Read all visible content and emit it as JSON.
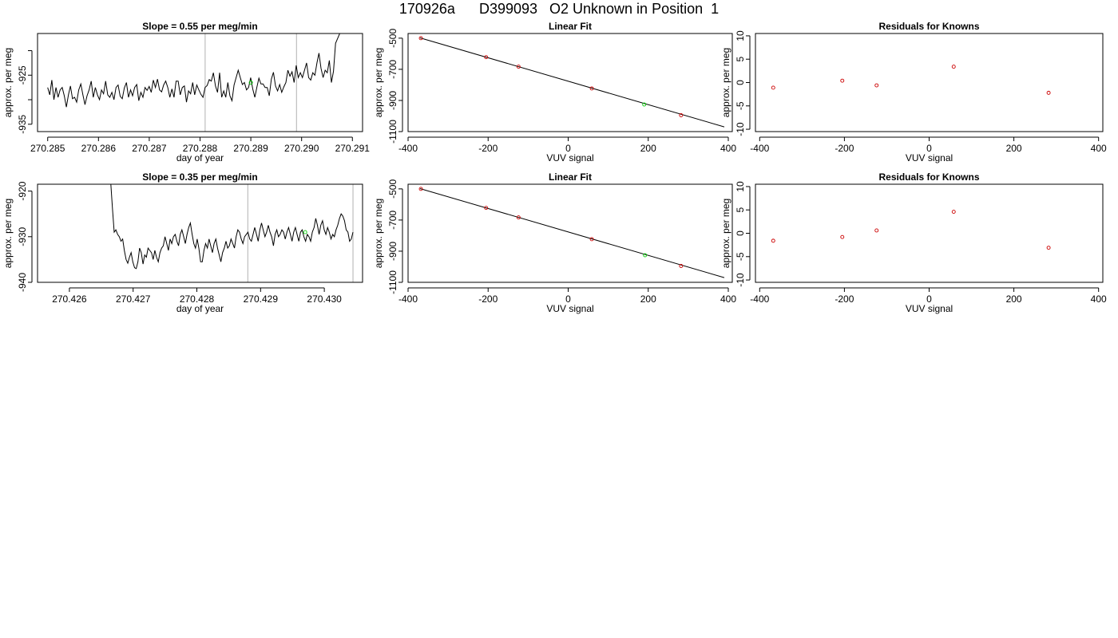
{
  "page": {
    "title": "170926a      D399093   O2 Unknown in Position  1"
  },
  "colors": {
    "line": "#000000",
    "known": "#cc0000",
    "unknown": "#00cc00",
    "vline": "#bebebe",
    "axis": "#000000"
  },
  "chart_data": [
    {
      "type": "line",
      "title": "Slope =  0.55  per meg/min",
      "xlabel": "day of year",
      "ylabel": "approx. per meg",
      "xlim": [
        270.2848,
        270.2912
      ],
      "ylim": [
        -936.5,
        -916.5
      ],
      "xticks": [
        270.285,
        270.286,
        270.287,
        270.288,
        270.289,
        270.29,
        270.291
      ],
      "xtick_labels": [
        "270.285",
        "270.286",
        "270.287",
        "270.288",
        "270.289",
        "270.290",
        "270.291"
      ],
      "yticks": [
        -935,
        -930,
        -925,
        -920
      ],
      "ytick_labels": [
        "-935",
        "",
        "-925",
        ""
      ],
      "vlines": [
        270.2881,
        270.2899
      ],
      "series": [
        {
          "style": "line",
          "x_start": 270.285,
          "x_end": 270.29075,
          "values": [
            -927.5,
            -929,
            -926,
            -930,
            -927.5,
            -929.5,
            -928,
            -927.5,
            -929.2,
            -931.5,
            -929,
            -927.2,
            -929.8,
            -929.5,
            -930.5,
            -928,
            -926.8,
            -929,
            -931,
            -929.2,
            -928,
            -926.2,
            -929.5,
            -927.5,
            -929,
            -930,
            -928,
            -928.8,
            -926.2,
            -929,
            -929.5,
            -928.5,
            -930,
            -927.5,
            -927,
            -929.3,
            -929.8,
            -927.6,
            -926.5,
            -929.5,
            -928,
            -929.2,
            -927.5,
            -926.9,
            -930.2,
            -928.5,
            -929.5,
            -927.5,
            -928.1,
            -927.3,
            -928.5,
            -926,
            -927.5,
            -925.8,
            -928,
            -928.4,
            -927,
            -926.2,
            -927.5,
            -929.5,
            -927.8,
            -929.5,
            -926.2,
            -926.2,
            -929,
            -927.5,
            -927.2,
            -930.5,
            -928.2,
            -928.8,
            -926.5,
            -929,
            -927,
            -928,
            -928.9,
            -929.5,
            -927.5,
            -927.1,
            -925.9,
            -926.2,
            -924.5,
            -927.2,
            -928.5,
            -924.5,
            -929.5,
            -928.2,
            -929.5,
            -926.5,
            -929.2,
            -930.2,
            -927,
            -925.5,
            -924,
            -925.5,
            -926.9,
            -926.5,
            -928,
            -927.5,
            -925.5,
            -927.8,
            -929.5,
            -927.5,
            -925.6,
            -926.8,
            -926.8,
            -927.5,
            -927.5,
            -929.2,
            -925.8,
            -924.4,
            -927.2,
            -928.2,
            -926.9,
            -928.5,
            -927.4,
            -926.5,
            -924,
            -925.2,
            -924.3,
            -926.5,
            -923,
            -925.5,
            -924.5,
            -925.5,
            -924,
            -922.5,
            -925.5,
            -926,
            -924.5,
            -925,
            -922.5,
            -920.5,
            -923.6,
            -925.5,
            -924,
            -924.5,
            -922,
            -926.5,
            -924.2,
            -918.5,
            -917.5,
            -916.5
          ]
        },
        {
          "style": "point",
          "x": [
            270.289
          ],
          "y": [
            -926.5
          ],
          "color": "unknown"
        }
      ]
    },
    {
      "type": "scatter",
      "title": "Linear Fit",
      "xlabel": "VUV signal",
      "ylabel": "approx. per meg",
      "xlim": [
        -400,
        410
      ],
      "ylim": [
        -1100,
        -470
      ],
      "xticks": [
        -400,
        -200,
        0,
        200,
        400
      ],
      "xtick_labels": [
        "-400",
        "-200",
        "0",
        "200",
        "400"
      ],
      "yticks": [
        -1100,
        -900,
        -700,
        -500
      ],
      "ytick_labels": [
        "-1100",
        "-900",
        "-700",
        "-500"
      ],
      "fit_line": {
        "x": [
          -370,
          390
        ],
        "y": [
          -498,
          -1070
        ]
      },
      "series": [
        {
          "style": "point",
          "x": [
            -368,
            -205,
            -124,
            59,
            282
          ],
          "y": [
            -500,
            -622,
            -683,
            -823,
            -995
          ],
          "color": "known"
        },
        {
          "style": "point",
          "x": [
            190
          ],
          "y": [
            -926
          ],
          "color": "unknown"
        }
      ]
    },
    {
      "type": "scatter",
      "title": "Residuals for Knowns",
      "xlabel": "VUV signal",
      "ylabel": "approx. per meg",
      "xlim": [
        -410,
        410
      ],
      "ylim": [
        -10.5,
        10.5
      ],
      "xticks": [
        -400,
        -200,
        0,
        200,
        400
      ],
      "xtick_labels": [
        "-400",
        "-200",
        "0",
        "200",
        "400"
      ],
      "yticks": [
        -10,
        -5,
        0,
        5,
        10
      ],
      "ytick_labels": [
        "-10",
        "-5",
        "0",
        "5",
        "10"
      ],
      "series": [
        {
          "style": "point",
          "x": [
            -368,
            -205,
            -124,
            58,
            282
          ],
          "y": [
            -1.1,
            0.4,
            -0.6,
            3.4,
            -2.2
          ],
          "color": "known"
        }
      ]
    },
    {
      "type": "line",
      "title": "Slope =  0.35  per meg/min",
      "xlabel": "day of year",
      "ylabel": "approx. per meg",
      "xlim": [
        270.4255,
        270.4306
      ],
      "ylim": [
        -940,
        -918.5
      ],
      "xticks": [
        270.426,
        270.427,
        270.428,
        270.429,
        270.43
      ],
      "xtick_labels": [
        "270.426",
        "270.427",
        "270.428",
        "270.429",
        "270.430"
      ],
      "yticks": [
        -940,
        -930,
        -920
      ],
      "ytick_labels": [
        "-940",
        "-930",
        "-920"
      ],
      "vlines": [
        270.4288,
        270.43045
      ],
      "series": [
        {
          "style": "line",
          "x_start": 270.42665,
          "x_end": 270.43045,
          "values": [
            -918.5,
            -924,
            -929,
            -928.5,
            -929.5,
            -930,
            -931,
            -930.5,
            -933,
            -935,
            -935.8,
            -934.5,
            -933.5,
            -935.5,
            -936.8,
            -937,
            -935.5,
            -932.5,
            -933.5,
            -936,
            -934,
            -934.5,
            -932.5,
            -933,
            -933.5,
            -935,
            -933,
            -934.5,
            -935.5,
            -933.5,
            -932.5,
            -932,
            -930,
            -931.5,
            -933,
            -930.5,
            -931.5,
            -930,
            -929.5,
            -931,
            -932,
            -929.5,
            -928.5,
            -930,
            -931.5,
            -929.5,
            -928,
            -927,
            -929.5,
            -931.5,
            -932.5,
            -930.5,
            -932.5,
            -935.5,
            -935.5,
            -933,
            -931.5,
            -932.5,
            -930.5,
            -932,
            -933.5,
            -931.5,
            -930.5,
            -932.5,
            -934,
            -935.5,
            -933.5,
            -932.5,
            -931,
            -932.5,
            -932,
            -930.5,
            -931.5,
            -932.5,
            -930,
            -928.5,
            -929,
            -930.5,
            -931.5,
            -930,
            -929.5,
            -929,
            -930.5,
            -931,
            -929.5,
            -928,
            -929.5,
            -931,
            -928.5,
            -927,
            -928.5,
            -930,
            -929,
            -927.5,
            -929,
            -930,
            -932,
            -929.5,
            -928.5,
            -930,
            -929.5,
            -928.5,
            -929,
            -930.5,
            -929,
            -928,
            -929.5,
            -931,
            -929,
            -928,
            -929.5,
            -931,
            -929,
            -928.5,
            -930,
            -931,
            -929.5,
            -930,
            -931,
            -929,
            -928,
            -926,
            -927.5,
            -929.5,
            -927.5,
            -926.5,
            -928.5,
            -929.5,
            -928,
            -929,
            -930.5,
            -929.5,
            -930,
            -928.5,
            -927.5,
            -926,
            -925,
            -925.5,
            -926.5,
            -928.5,
            -929,
            -931,
            -930.5,
            -929
          ]
        },
        {
          "style": "point",
          "x": [
            270.4297
          ],
          "y": [
            -929
          ],
          "color": "unknown"
        }
      ]
    },
    {
      "type": "scatter",
      "title": "Linear Fit",
      "xlabel": "VUV signal",
      "ylabel": "approx. per meg",
      "xlim": [
        -400,
        410
      ],
      "ylim": [
        -1100,
        -470
      ],
      "xticks": [
        -400,
        -200,
        0,
        200,
        400
      ],
      "xtick_labels": [
        "-400",
        "-200",
        "0",
        "200",
        "400"
      ],
      "yticks": [
        -1100,
        -900,
        -700,
        -500
      ],
      "ytick_labels": [
        "-1100",
        "-900",
        "-700",
        "-500"
      ],
      "fit_line": {
        "x": [
          -370,
          390
        ],
        "y": [
          -498,
          -1070
        ]
      },
      "series": [
        {
          "style": "point",
          "x": [
            -368,
            -205,
            -124,
            59,
            282
          ],
          "y": [
            -500,
            -622,
            -683,
            -823,
            -995
          ],
          "color": "known"
        },
        {
          "style": "point",
          "x": [
            192
          ],
          "y": [
            -926
          ],
          "color": "unknown"
        }
      ]
    },
    {
      "type": "scatter",
      "title": "Residuals for Knowns",
      "xlabel": "VUV signal",
      "ylabel": "approx. per meg",
      "xlim": [
        -410,
        410
      ],
      "ylim": [
        -10.5,
        10.5
      ],
      "xticks": [
        -400,
        -200,
        0,
        200,
        400
      ],
      "xtick_labels": [
        "-400",
        "-200",
        "0",
        "200",
        "400"
      ],
      "yticks": [
        -10,
        -5,
        0,
        5,
        10
      ],
      "ytick_labels": [
        "-10",
        "-5",
        "0",
        "5",
        "10"
      ],
      "series": [
        {
          "style": "point",
          "x": [
            -368,
            -205,
            -124,
            58,
            282
          ],
          "y": [
            -1.6,
            -0.8,
            0.6,
            4.6,
            -3.1
          ],
          "color": "known"
        }
      ]
    }
  ]
}
